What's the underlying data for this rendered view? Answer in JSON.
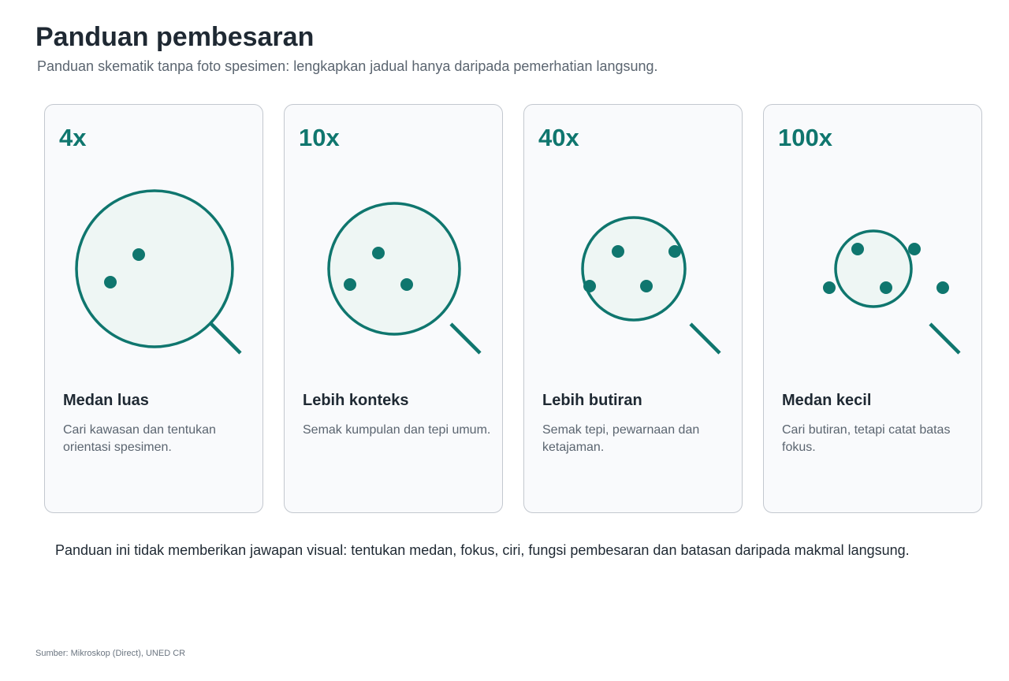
{
  "title": "Panduan pembesaran",
  "subtitle": "Panduan skematik tanpa foto spesimen: lengkapkan jadual hanya daripada pemerhatian langsung.",
  "accent_color": "#0f766e",
  "lens_fill_color": "#eef6f4",
  "cards": [
    {
      "magnification": "4x",
      "heading": "Medan luas",
      "description": "Cari kawasan dan tentukan orientasi spesimen.",
      "icon": "magnifier-icon"
    },
    {
      "magnification": "10x",
      "heading": "Lebih konteks",
      "description": "Semak kumpulan dan tepi umum.",
      "icon": "magnifier-icon"
    },
    {
      "magnification": "40x",
      "heading": "Lebih butiran",
      "description": "Semak tepi, pewarnaan dan ketajaman.",
      "icon": "magnifier-icon"
    },
    {
      "magnification": "100x",
      "heading": "Medan kecil",
      "description": "Cari butiran, tetapi catat batas fokus.",
      "icon": "magnifier-icon"
    }
  ],
  "note": "Panduan ini tidak memberikan jawapan visual: tentukan medan, fokus, ciri, fungsi pembesaran dan batasan daripada makmal langsung.",
  "source": "Sumber: Mikroskop (Direct), UNED CR"
}
